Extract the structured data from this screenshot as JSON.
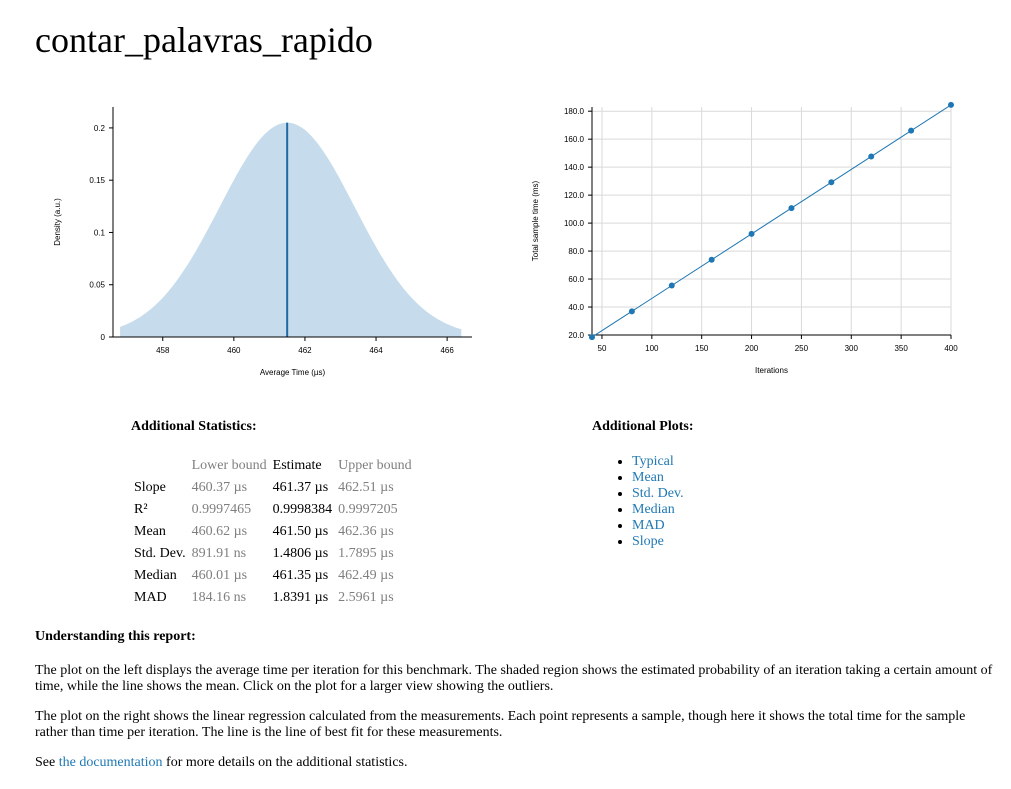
{
  "page_title": "contar_palavras_rapido",
  "chart_data": [
    {
      "type": "area",
      "name": "pdf",
      "xlabel": "Average Time (µs)",
      "ylabel": "Density (a.u.)",
      "xlim": [
        456.6,
        466.7
      ],
      "ylim": [
        0,
        0.22
      ],
      "xticks": [
        458,
        460,
        462,
        464,
        466
      ],
      "yticks": [
        0,
        0.05,
        0.1,
        0.15,
        0.2
      ],
      "ytick_labels": [
        "0",
        "0.05",
        "0.1",
        "0.15",
        "0.2"
      ],
      "distribution": {
        "mean": 461.5,
        "sd": 1.9,
        "peak": 0.205,
        "x_from": 456.8,
        "x_to": 466.4
      },
      "mean_line": 461.5,
      "fill_color": "#c6dbeb",
      "line_color": "#1f6aa5"
    },
    {
      "type": "scatter",
      "name": "regression",
      "xlabel": "Iterations",
      "ylabel": "Total sample time (ms)",
      "xlim": [
        40,
        400
      ],
      "ylim": [
        20,
        183
      ],
      "xticks": [
        50,
        100,
        150,
        200,
        250,
        300,
        350,
        400
      ],
      "yticks": [
        20,
        40,
        60,
        80,
        100,
        120,
        140,
        160,
        180
      ],
      "ytick_labels": [
        "20.0",
        "40.0",
        "60.0",
        "80.0",
        "100.0",
        "120.0",
        "140.0",
        "160.0",
        "180.0"
      ],
      "points": [
        {
          "x": 40,
          "y": 18.5
        },
        {
          "x": 80,
          "y": 36.9
        },
        {
          "x": 120,
          "y": 55.4
        },
        {
          "x": 160,
          "y": 73.8
        },
        {
          "x": 200,
          "y": 92.3
        },
        {
          "x": 240,
          "y": 110.7
        },
        {
          "x": 280,
          "y": 129.2
        },
        {
          "x": 320,
          "y": 147.6
        },
        {
          "x": 360,
          "y": 166.1
        },
        {
          "x": 400,
          "y": 184.5
        }
      ],
      "fit_line": [
        [
          40,
          18.5
        ],
        [
          400,
          184.5
        ]
      ],
      "grid": true,
      "color": "#1f78b4"
    }
  ],
  "stats": {
    "title": "Additional Statistics:",
    "headers": [
      "",
      "Lower bound",
      "Estimate",
      "Upper bound"
    ],
    "rows": [
      {
        "label": "Slope",
        "lower": "460.37 µs",
        "estimate": "461.37 µs",
        "upper": "462.51 µs"
      },
      {
        "label": "R²",
        "lower": "0.9997465",
        "estimate": "0.9998384",
        "upper": "0.9997205"
      },
      {
        "label": "Mean",
        "lower": "460.62 µs",
        "estimate": "461.50 µs",
        "upper": "462.36 µs"
      },
      {
        "label": "Std. Dev.",
        "lower": "891.91 ns",
        "estimate": "1.4806 µs",
        "upper": "1.7895 µs"
      },
      {
        "label": "Median",
        "lower": "460.01 µs",
        "estimate": "461.35 µs",
        "upper": "462.49 µs"
      },
      {
        "label": "MAD",
        "lower": "184.16 ns",
        "estimate": "1.8391 µs",
        "upper": "2.5961 µs"
      }
    ]
  },
  "plots": {
    "title": "Additional Plots:",
    "links": [
      "Typical",
      "Mean",
      "Std. Dev.",
      "Median",
      "MAD",
      "Slope"
    ]
  },
  "explanation": {
    "heading": "Understanding this report:",
    "p1": "The plot on the left displays the average time per iteration for this benchmark. The shaded region shows the estimated probability of an iteration taking a certain amount of time, while the line shows the mean. Click on the plot for a larger view showing the outliers.",
    "p2": "The plot on the right shows the linear regression calculated from the measurements. Each point represents a sample, though here it shows the total time for the sample rather than time per iteration. The line is the line of best fit for these measurements.",
    "p3_before": "See ",
    "p3_link": "the documentation",
    "p3_after": " for more details on the additional statistics."
  }
}
